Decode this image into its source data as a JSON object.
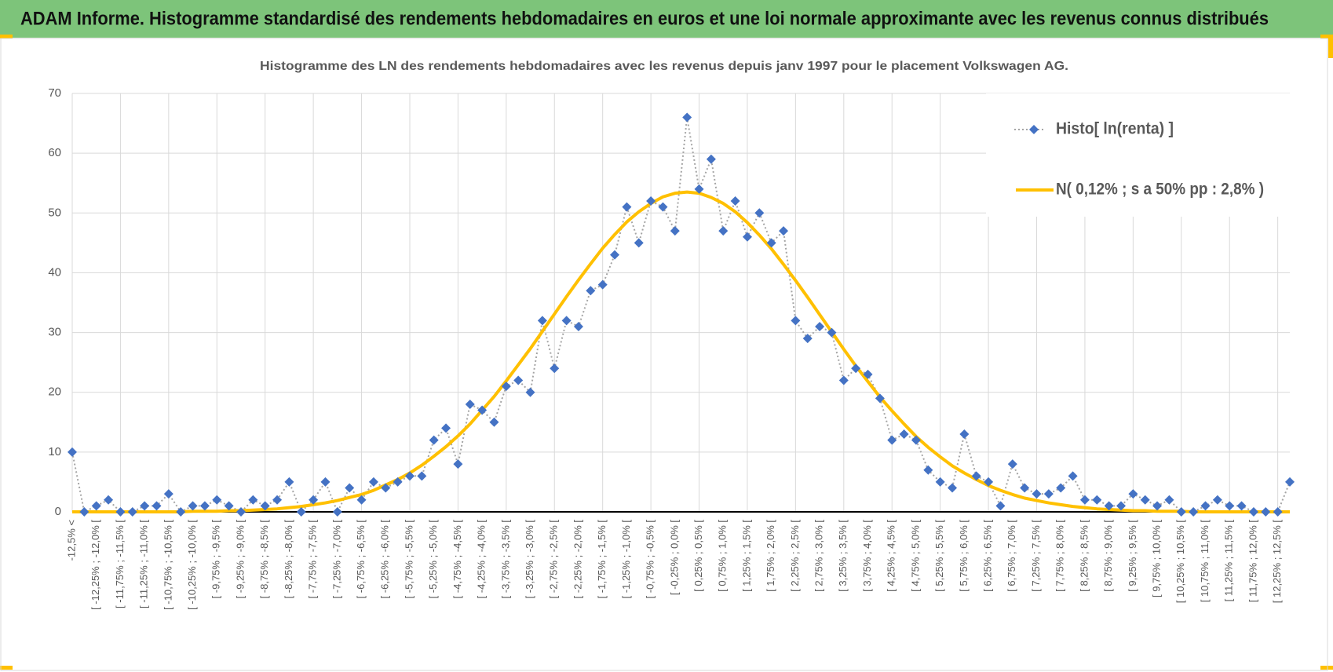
{
  "header": {
    "title": "ADAM Informe. Histogramme standardisé des rendements hebdomadaires en euros et une loi normale approximante avec les revenus connus distribués"
  },
  "chart_data": {
    "type": "line",
    "title": "Histogramme  des LN des rendements hebdomadaires avec les revenus depuis janv 1997 pour le placement Volkswagen AG.",
    "categories": [
      "-12,5% <",
      null,
      "[ -12,25% ; -12,0% [",
      null,
      "[ -11,75% ; -11,5% [",
      null,
      "[ -11,25% ; -11,0% [",
      null,
      "[ -10,75% ; -10,5% [",
      null,
      "[ -10,25% ; -10,0% [",
      null,
      "[ -9,75% ; -9,5% [",
      null,
      "[ -9,25% ; -9,0% [",
      null,
      "[ -8,75% ; -8,5% [",
      null,
      "[ -8,25% ; -8,0% [",
      null,
      "[ -7,75% ; -7,5% [",
      null,
      "[ -7,25% ; -7,0% [",
      null,
      "[ -6,75% ; -6,5% [",
      null,
      "[ -6,25% ; -6,0% [",
      null,
      "[ -5,75% ; -5,5% [",
      null,
      "[ -5,25% ; -5,0% [",
      null,
      "[ -4,75% ; -4,5% [",
      null,
      "[ -4,25% ; -4,0% [",
      null,
      "[ -3,75% ; -3,5% [",
      null,
      "[ -3,25% ; -3,0% [",
      null,
      "[ -2,75% ; -2,5% [",
      null,
      "[ -2,25% ; -2,0% [",
      null,
      "[ -1,75% ; -1,5% [",
      null,
      "[ -1,25% ; -1,0% [",
      null,
      "[ -0,75% ; -0,5% [",
      null,
      "[ -0,25% ; 0,0% [",
      null,
      "[ 0,25% ; 0,5% [",
      null,
      "[ 0,75% ; 1,0% [",
      null,
      "[ 1,25% ; 1,5% [",
      null,
      "[ 1,75% ; 2,0% [",
      null,
      "[ 2,25% ; 2,5% [",
      null,
      "[ 2,75% ; 3,0% [",
      null,
      "[ 3,25% ; 3,5% [",
      null,
      "[ 3,75% ; 4,0% [",
      null,
      "[ 4,25% ; 4,5% [",
      null,
      "[ 4,75% ; 5,0% [",
      null,
      "[ 5,25% ; 5,5% [",
      null,
      "[ 5,75% ; 6,0% [",
      null,
      "[ 6,25% ; 6,5% [",
      null,
      "[ 6,75% ; 7,0% [",
      null,
      "[ 7,25% ; 7,5% [",
      null,
      "[ 7,75% ; 8,0% [",
      null,
      "[ 8,25% ; 8,5% [",
      null,
      "[ 8,75% ; 9,0% [",
      null,
      "[ 9,25% ; 9,5% [",
      null,
      "[ 9,75% ; 10,0% [",
      null,
      "[ 10,25% ; 10,5% [",
      null,
      "[ 10,75% ; 11,0% [",
      null,
      "[ 11,25% ; 11,5% [",
      null,
      "[ 11,75% ; 12,0% [",
      null,
      "[ 12,25% ; 12,5% [",
      null
    ],
    "series": [
      {
        "name": "Histo[ ln(renta) ]",
        "color": "#4472c4",
        "line_color": "#a5a5a5",
        "values": [
          10,
          0,
          1,
          2,
          0,
          0,
          1,
          1,
          3,
          0,
          1,
          1,
          2,
          1,
          0,
          2,
          1,
          2,
          5,
          0,
          2,
          5,
          0,
          4,
          2,
          5,
          4,
          5,
          6,
          6,
          12,
          14,
          8,
          18,
          17,
          15,
          21,
          22,
          20,
          32,
          24,
          32,
          31,
          37,
          38,
          43,
          51,
          45,
          52,
          51,
          47,
          66,
          54,
          59,
          47,
          52,
          46,
          50,
          45,
          47,
          32,
          29,
          31,
          30,
          22,
          24,
          23,
          19,
          12,
          13,
          12,
          7,
          5,
          4,
          13,
          6,
          5,
          1,
          8,
          4,
          3,
          3,
          4,
          6,
          2,
          2,
          1,
          1,
          3,
          2,
          1,
          2,
          0,
          0,
          1,
          2,
          1,
          1,
          0,
          0,
          0,
          5
        ]
      },
      {
        "name": "N( 0,12% ; s a 50% pp : 2,8% )",
        "color": "#ffc000",
        "values": [
          0,
          0,
          0,
          0,
          0,
          0,
          0,
          0,
          0,
          0,
          0.1,
          0.1,
          0.1,
          0.2,
          0.2,
          0.3,
          0.4,
          0.5,
          0.7,
          0.9,
          1.2,
          1.5,
          1.9,
          2.4,
          2.9,
          3.6,
          4.5,
          5.4,
          6.5,
          7.8,
          9.3,
          10.9,
          12.7,
          14.7,
          17.0,
          19.3,
          21.9,
          24.6,
          27.3,
          30.2,
          33.1,
          36.0,
          38.8,
          41.5,
          44.1,
          46.4,
          48.5,
          50.2,
          51.6,
          52.7,
          53.3,
          53.5,
          53.3,
          52.6,
          51.6,
          50.2,
          48.4,
          46.3,
          44.0,
          41.4,
          38.7,
          35.9,
          33.0,
          30.1,
          27.2,
          24.4,
          21.8,
          19.2,
          16.9,
          14.7,
          12.6,
          10.8,
          9.2,
          7.7,
          6.5,
          5.4,
          4.4,
          3.6,
          2.9,
          2.3,
          1.9,
          1.5,
          1.2,
          0.9,
          0.7,
          0.5,
          0.4,
          0.3,
          0.2,
          0.2,
          0.1,
          0.1,
          0.1,
          0,
          0,
          0,
          0,
          0,
          0,
          0,
          0,
          0
        ]
      }
    ],
    "ylim": [
      0,
      70
    ],
    "yticks": [
      0,
      10,
      20,
      30,
      40,
      50,
      60,
      70
    ],
    "grid": true,
    "legend": "upper right"
  }
}
